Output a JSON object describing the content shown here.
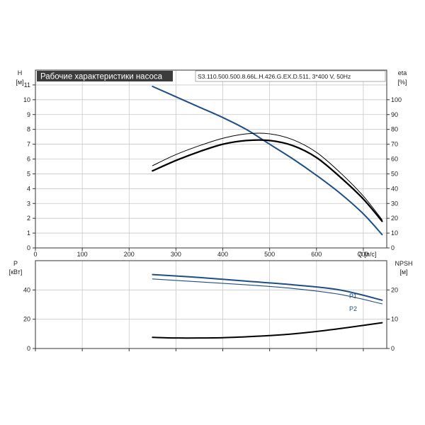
{
  "header": {
    "title": "Рабочие характеристики насоса",
    "model": "S3.110.500.500.8.66L.H.426.G.EX.D.511, 3*400 V, 50Hz"
  },
  "colors": {
    "blue": "#1f4e86",
    "black": "#000000",
    "title_bg": "#3c3c3c"
  },
  "chart_data": [
    {
      "type": "line",
      "name": "upper",
      "x_axis": {
        "label": "Q [л/с]",
        "range": [
          0,
          750
        ],
        "ticks": [
          0,
          100,
          200,
          300,
          400,
          500,
          600,
          700
        ]
      },
      "y_axis_left": {
        "label_top": "H",
        "label_unit": "[м]",
        "range": [
          0,
          12
        ],
        "ticks": [
          0,
          1,
          2,
          3,
          4,
          5,
          6,
          7,
          8,
          9,
          10,
          11
        ]
      },
      "y_axis_right": {
        "label_top": "eta",
        "label_unit": "[%]",
        "range": [
          0,
          120
        ],
        "ticks": [
          0,
          10,
          20,
          30,
          40,
          50,
          60,
          70,
          80,
          90,
          100
        ]
      },
      "grid": true,
      "series": [
        {
          "axis": "left",
          "color": "#1f4e86",
          "width": 2,
          "x": [
            250,
            300,
            350,
            400,
            450,
            500,
            550,
            600,
            650,
            700,
            740
          ],
          "y": [
            10.9,
            10.2,
            9.5,
            8.8,
            8.0,
            7.0,
            6.0,
            4.9,
            3.7,
            2.3,
            0.9
          ]
        },
        {
          "axis": "right",
          "color": "#000000",
          "width": 2.3,
          "x": [
            250,
            300,
            350,
            400,
            450,
            500,
            550,
            600,
            650,
            700,
            740
          ],
          "y": [
            52,
            59,
            65,
            70,
            72.5,
            72.5,
            69,
            61,
            48,
            33,
            18
          ]
        },
        {
          "axis": "right",
          "color": "#000000",
          "width": 1,
          "x": [
            250,
            300,
            350,
            400,
            450,
            500,
            550,
            600,
            650,
            700,
            740
          ],
          "y": [
            55.5,
            63,
            69,
            74,
            77,
            77,
            73,
            64.5,
            51,
            35,
            19
          ]
        }
      ]
    },
    {
      "type": "line",
      "name": "lower",
      "x_axis": {
        "range": [
          0,
          750
        ],
        "ticks": [
          0,
          100,
          200,
          300,
          400,
          500,
          600,
          700
        ]
      },
      "y_axis_left": {
        "label_top": "P",
        "label_unit": "[кВт]",
        "range": [
          0,
          60
        ],
        "ticks": [
          0,
          20,
          40
        ]
      },
      "y_axis_right": {
        "label_top": "NPSH",
        "label_unit": "[м]",
        "range": [
          0,
          30
        ],
        "ticks": [
          0,
          10,
          20
        ]
      },
      "grid": true,
      "series": [
        {
          "name": "P1",
          "axis": "left",
          "color": "#1f4e86",
          "width": 2,
          "x": [
            250,
            350,
            450,
            550,
            650,
            740
          ],
          "y": [
            50.5,
            48.5,
            46,
            43.5,
            40,
            33
          ]
        },
        {
          "name": "P2",
          "axis": "left",
          "color": "#1f4e86",
          "width": 1.1,
          "x": [
            250,
            350,
            450,
            550,
            650,
            740
          ],
          "y": [
            47.5,
            45.5,
            43.5,
            41,
            37,
            30.5
          ]
        },
        {
          "axis": "right",
          "color": "#000000",
          "width": 2,
          "x": [
            250,
            300,
            350,
            400,
            450,
            500,
            550,
            600,
            650,
            700,
            740
          ],
          "y": [
            3.8,
            3.6,
            3.6,
            3.7,
            4.0,
            4.4,
            5.0,
            5.8,
            6.8,
            7.9,
            8.8
          ]
        }
      ]
    }
  ]
}
